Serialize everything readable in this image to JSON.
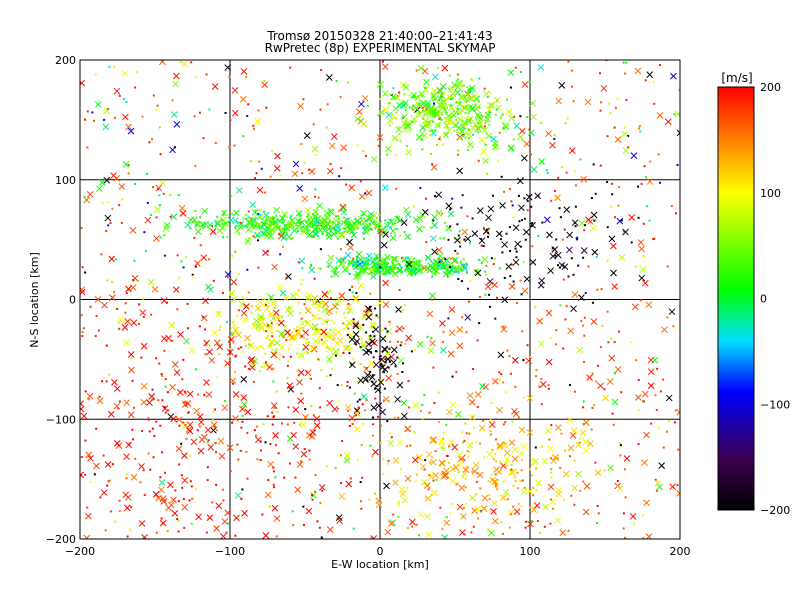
{
  "chart_data": [
    {
      "type": "scatter",
      "title": "Tromsø 20150328 21:40:00–21:41:43",
      "subtitle": "RwPretec (8p) EXPERIMENTAL SKYMAP",
      "xlabel": "E-W location [km]",
      "ylabel": "N-S location [km]",
      "xlim": [
        -200,
        200
      ],
      "ylim": [
        -200,
        200
      ],
      "x_ticks": [
        "−200",
        "−100",
        "0",
        "100",
        "200"
      ],
      "y_ticks": [
        "−200",
        "−100",
        "0",
        "100",
        "200"
      ],
      "grid": true,
      "markers": [
        "x",
        "dot"
      ],
      "color_by": "velocity",
      "clusters": [
        {
          "center": [
            45,
            155
          ],
          "spread": [
            22,
            14
          ],
          "velocity": 40
        },
        {
          "center": [
            -45,
            62
          ],
          "spread": [
            40,
            6
          ],
          "velocity": 20
        },
        {
          "center": [
            15,
            28
          ],
          "spread": [
            28,
            4
          ],
          "velocity": 10
        },
        {
          "center": [
            -50,
            -25
          ],
          "spread": [
            28,
            18
          ],
          "velocity": 90
        },
        {
          "center": [
            -5,
            -45
          ],
          "spread": [
            10,
            25
          ],
          "velocity": -200
        },
        {
          "center": [
            70,
            -140
          ],
          "spread": [
            40,
            25
          ],
          "velocity": 120
        },
        {
          "center": [
            95,
            50
          ],
          "spread": [
            45,
            30
          ],
          "velocity": -200
        },
        {
          "center": [
            -120,
            -100
          ],
          "spread": [
            60,
            70
          ],
          "velocity": 200
        }
      ]
    },
    {
      "type": "heatmap",
      "title": "[m/s]",
      "zlim": [
        -200,
        200
      ],
      "ticks": [
        "200",
        "100",
        "0",
        "−100",
        "−200"
      ],
      "colormap": [
        "#000000",
        "#3c0050",
        "#0000ff",
        "#00e0ff",
        "#00ff00",
        "#ffff00",
        "#ff0000"
      ]
    }
  ]
}
